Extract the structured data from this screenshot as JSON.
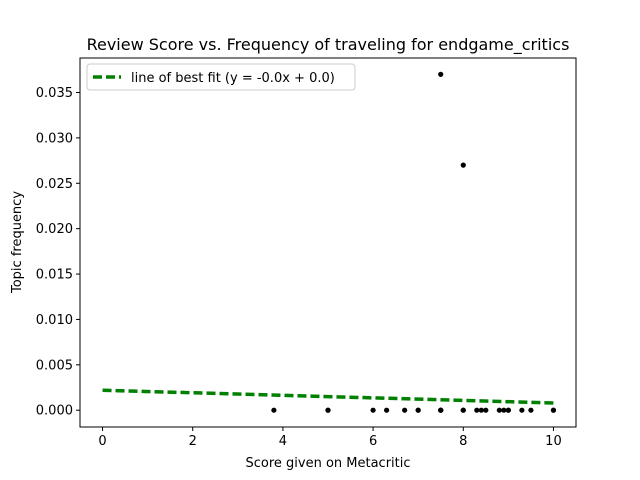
{
  "chart_data": {
    "type": "scatter",
    "title": "Review Score vs. Frequency of traveling for endgame_critics",
    "xlabel": "Score given on Metacritic",
    "ylabel": "Topic frequency",
    "xlim": [
      -0.5,
      10.5
    ],
    "ylim": [
      -0.00185,
      0.0388
    ],
    "xticks": [
      0,
      2,
      4,
      6,
      8,
      10
    ],
    "xtick_labels": [
      "0",
      "2",
      "4",
      "6",
      "8",
      "10"
    ],
    "yticks": [
      0.0,
      0.005,
      0.01,
      0.015,
      0.02,
      0.025,
      0.03,
      0.035
    ],
    "ytick_labels": [
      "0.000",
      "0.005",
      "0.010",
      "0.015",
      "0.020",
      "0.025",
      "0.030",
      "0.035"
    ],
    "grid": false,
    "legend_position": "upper-left",
    "points": {
      "color": "#000000",
      "x": [
        3.8,
        5.0,
        5.0,
        6.0,
        6.3,
        6.7,
        7.0,
        7.0,
        7.5,
        7.5,
        7.5,
        8.0,
        8.0,
        8.3,
        8.4,
        8.5,
        8.8,
        8.9,
        9.0,
        9.0,
        9.3,
        9.5,
        10.0,
        10.0,
        7.5,
        8.0
      ],
      "y": [
        0,
        0,
        0,
        0,
        0,
        0,
        0,
        0,
        0,
        0,
        0,
        0,
        0,
        0,
        0,
        0,
        0,
        0,
        0,
        0,
        0,
        0,
        0,
        0,
        0.037,
        0.027
      ]
    },
    "fit_line": {
      "name": "line of best fit (y = -0.0x + 0.0)",
      "color": "#008000",
      "x": [
        0,
        10
      ],
      "y": [
        0.0022,
        0.0008
      ]
    }
  }
}
